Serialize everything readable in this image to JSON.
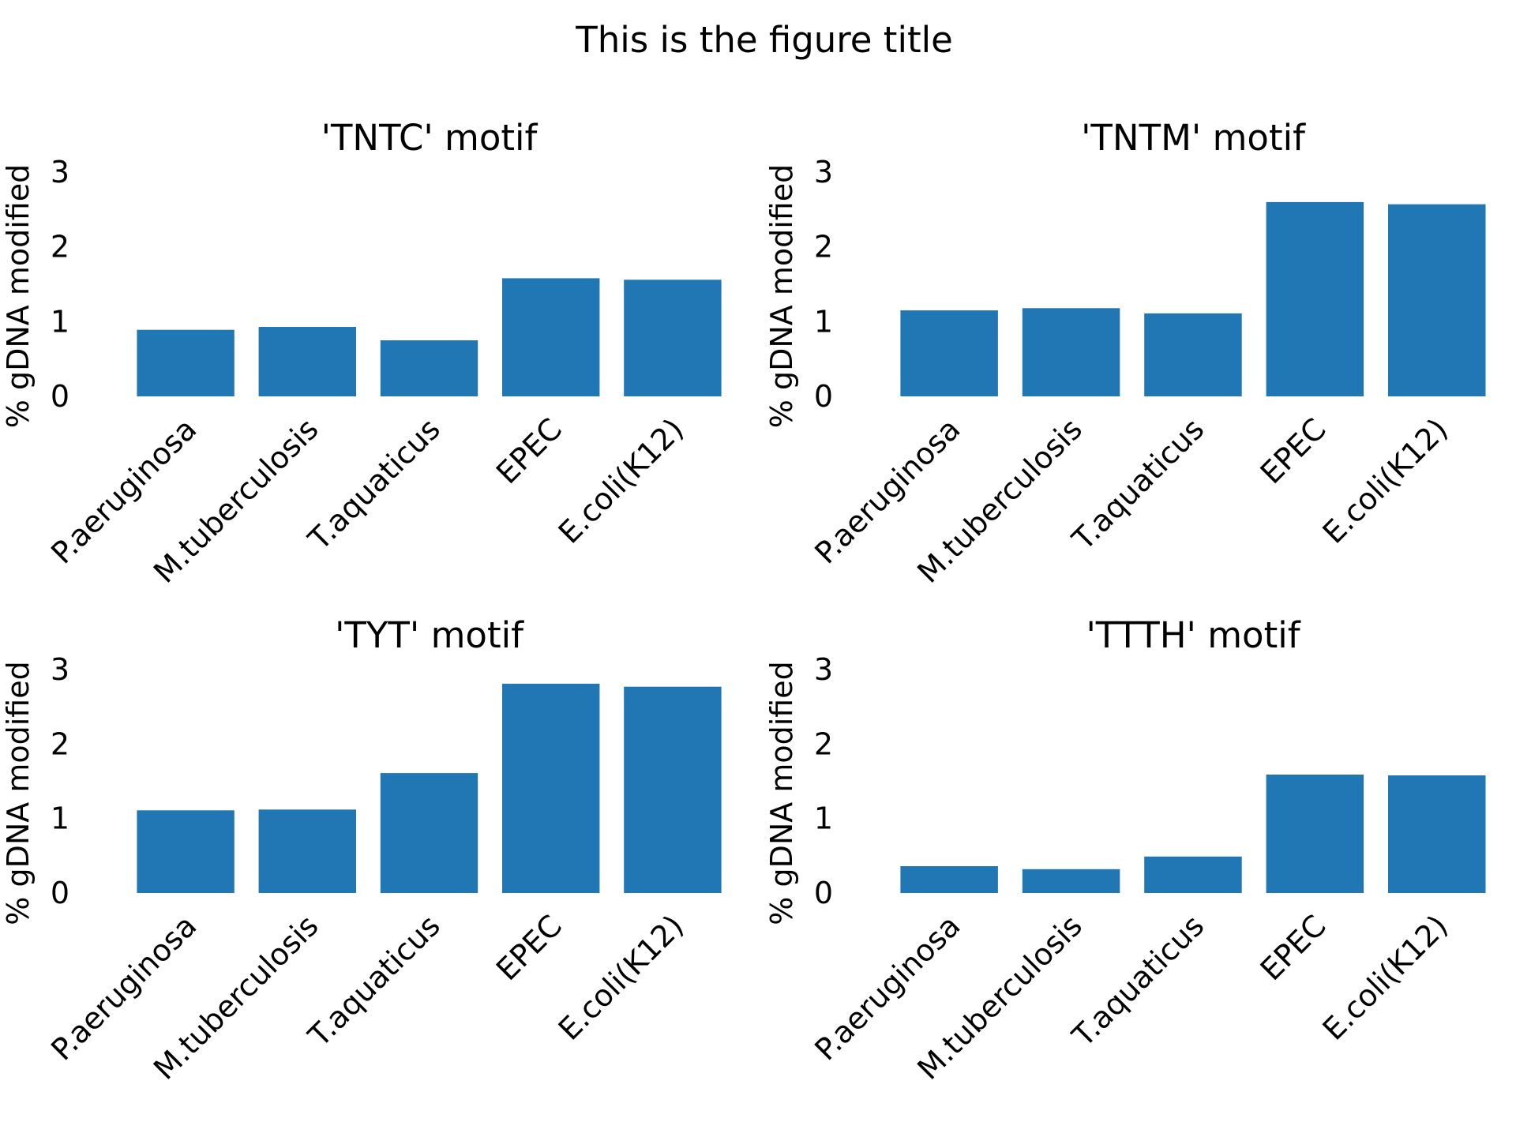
{
  "figure": {
    "title": "This is the figure title"
  },
  "colors": {
    "bar": "#2077b4",
    "text": "#000000",
    "background": "#ffffff"
  },
  "chart_data": [
    {
      "type": "bar",
      "title": "'TNTC' motif",
      "xlabel": "",
      "ylabel": "% gDNA modified",
      "categories": [
        "P.aeruginosa",
        "M.tuberculosis",
        "T.aquaticus",
        "EPEC",
        "E.coli(K12)"
      ],
      "values": [
        0.89,
        0.93,
        0.75,
        1.58,
        1.56
      ],
      "ylim": [
        0,
        3
      ],
      "yticks": [
        0,
        1,
        2,
        3
      ],
      "grid": false
    },
    {
      "type": "bar",
      "title": "'TNTM' motif",
      "xlabel": "",
      "ylabel": "% gDNA modified",
      "categories": [
        "P.aeruginosa",
        "M.tuberculosis",
        "T.aquaticus",
        "EPEC",
        "E.coli(K12)"
      ],
      "values": [
        1.15,
        1.18,
        1.11,
        2.6,
        2.57
      ],
      "ylim": [
        0,
        3
      ],
      "yticks": [
        0,
        1,
        2,
        3
      ],
      "grid": false
    },
    {
      "type": "bar",
      "title": "'TYT' motif",
      "xlabel": "",
      "ylabel": "% gDNA modified",
      "categories": [
        "P.aeruginosa",
        "M.tuberculosis",
        "T.aquaticus",
        "EPEC",
        "E.coli(K12)"
      ],
      "values": [
        1.11,
        1.12,
        1.61,
        2.81,
        2.77
      ],
      "ylim": [
        0,
        3
      ],
      "yticks": [
        0,
        1,
        2,
        3
      ],
      "grid": false
    },
    {
      "type": "bar",
      "title": "'TTTH' motif",
      "xlabel": "",
      "ylabel": "% gDNA modified",
      "categories": [
        "P.aeruginosa",
        "M.tuberculosis",
        "T.aquaticus",
        "EPEC",
        "E.coli(K12)"
      ],
      "values": [
        0.36,
        0.32,
        0.49,
        1.59,
        1.58
      ],
      "ylim": [
        0,
        3
      ],
      "yticks": [
        0,
        1,
        2,
        3
      ],
      "grid": false
    }
  ]
}
